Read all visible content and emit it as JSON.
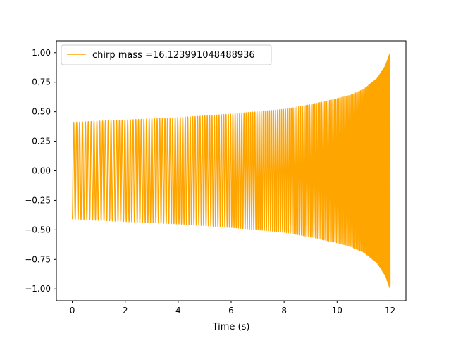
{
  "chart_data": {
    "type": "line",
    "title": "",
    "xlabel": "Time (s)",
    "ylabel": "",
    "xlim": [
      -0.6,
      12.6
    ],
    "ylim": [
      -1.1,
      1.1
    ],
    "x_ticks": [
      0,
      2,
      4,
      6,
      8,
      10,
      12
    ],
    "x_tick_labels": [
      "0",
      "2",
      "4",
      "6",
      "8",
      "10",
      "12"
    ],
    "y_ticks": [
      -1.0,
      -0.75,
      -0.5,
      -0.25,
      0.0,
      0.25,
      0.5,
      0.75,
      1.0
    ],
    "y_tick_labels": [
      "−1.00",
      "−0.75",
      "−0.50",
      "−0.25",
      "0.00",
      "0.25",
      "0.50",
      "0.75",
      "1.00"
    ],
    "grid": false,
    "legend_position": "upper-left",
    "series": [
      {
        "name": "chirp mass =16.123991048488936",
        "color": "#ffa500",
        "x_range": [
          0,
          12
        ],
        "envelope": {
          "t": [
            0,
            2,
            4,
            6,
            8,
            9,
            10,
            10.5,
            11,
            11.5,
            11.8,
            12
          ],
          "amplitude": [
            0.41,
            0.43,
            0.45,
            0.48,
            0.52,
            0.56,
            0.61,
            0.64,
            0.69,
            0.78,
            0.88,
            1.0
          ]
        }
      }
    ]
  }
}
